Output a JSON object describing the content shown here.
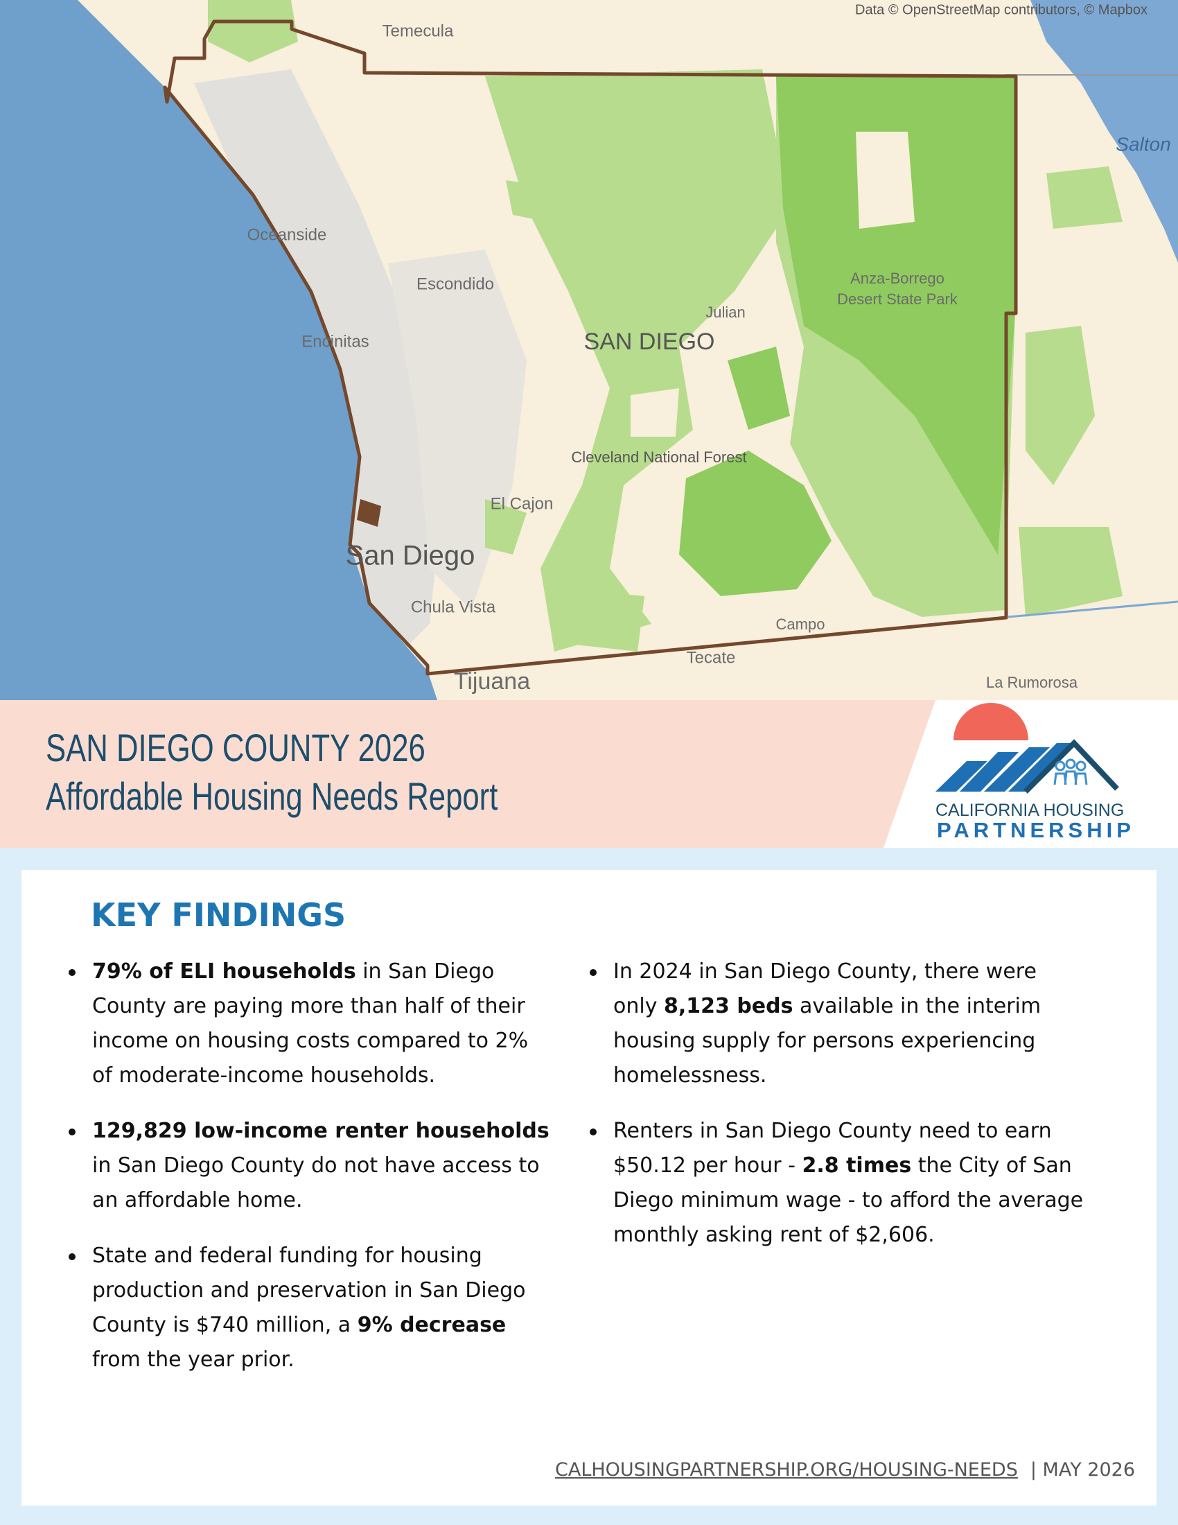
{
  "map": {
    "attribution": "Data © OpenStreetMap contributors, © Mapbox",
    "labels": [
      "Temecula",
      "Salton",
      "Oceanside",
      "Escondido",
      "Encinitas",
      "Julian",
      "SAN DIEGO",
      "Anza-Borrego",
      "Desert State Park",
      "Cleveland National Forest",
      "El Cajon",
      "San Diego",
      "Chula Vista",
      "Campo",
      "Tecate",
      "Tijuana",
      "La Rumorosa"
    ]
  },
  "header": {
    "title_line1": "SAN DIEGO COUNTY 2026",
    "title_line2": "Affordable Housing Needs Report",
    "logo_line1": "CALIFORNIA HOUSING",
    "logo_line2": "PARTNERSHIP"
  },
  "key_findings": {
    "heading": "KEY FINDINGS",
    "columns": [
      [
        [
          {
            "text": "79% of ELI households",
            "bold": true
          },
          {
            "text": " in San Diego County are paying more than half of their income on housing costs compared to 2% of moderate-income households.",
            "bold": false
          }
        ],
        [
          {
            "text": "129,829 low-income renter households",
            "bold": true
          },
          {
            "text": " in San Diego County do not have access to an affordable home.",
            "bold": false
          }
        ],
        [
          {
            "text": "State and federal funding for housing production and preservation in San Diego County is $740 million, a ",
            "bold": false
          },
          {
            "text": "9% decrease",
            "bold": true
          },
          {
            "text": " from the year prior.",
            "bold": false
          }
        ]
      ],
      [
        [
          {
            "text": "In 2024 in San Diego County, there were only ",
            "bold": false
          },
          {
            "text": "8,123 beds",
            "bold": true
          },
          {
            "text": " available in the interim housing supply for persons experiencing homelessness.",
            "bold": false
          }
        ],
        [
          {
            "text": "Renters in San Diego County need to earn $50.12 per hour - ",
            "bold": false
          },
          {
            "text": "2.8 times",
            "bold": true
          },
          {
            "text": " the City of San Diego minimum wage - to afford the average monthly asking rent of $2,606.",
            "bold": false
          }
        ]
      ]
    ]
  },
  "footer": {
    "link": "CALHOUSINGPARTNERSHIP.ORG/HOUSING-NEEDS",
    "date": "| MAY 2026"
  }
}
